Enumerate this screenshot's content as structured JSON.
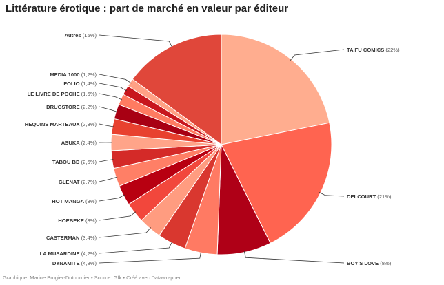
{
  "title": "Littérature érotique : part de marché en valeur par éditeur",
  "footer": "Graphique: Marine Brugier-Dutournier • Source: Gfk • Créé avec Datawrapper",
  "chart_data": {
    "type": "pie",
    "title": "Littérature érotique : part de marché en valeur par éditeur",
    "slices": [
      {
        "name": "TAIFU COMICS",
        "value": 22,
        "pct_label": "(22%)",
        "color": "#ffad8f"
      },
      {
        "name": "DELCOURT",
        "value": 21,
        "pct_label": "(21%)",
        "color": "#ff6450"
      },
      {
        "name": "BOY'S LOVE",
        "value": 8,
        "pct_label": "(8%)",
        "color": "#af0017"
      },
      {
        "name": "DYNAMITE",
        "value": 4.8,
        "pct_label": "(4,8%)",
        "color": "#ff7a63"
      },
      {
        "name": "LA MUSARDINE",
        "value": 4.2,
        "pct_label": "(4,2%)",
        "color": "#d9372f"
      },
      {
        "name": "CASTERMAN",
        "value": 3.4,
        "pct_label": "(3,4%)",
        "color": "#ff9c80"
      },
      {
        "name": "HOEBEKE",
        "value": 3,
        "pct_label": "(3%)",
        "color": "#f2473c"
      },
      {
        "name": "HOT MANGA",
        "value": 3,
        "pct_label": "(3%)",
        "color": "#b80011"
      },
      {
        "name": "GLENAT",
        "value": 2.7,
        "pct_label": "(2,7%)",
        "color": "#ff7f66"
      },
      {
        "name": "TABOU BD",
        "value": 2.6,
        "pct_label": "(2,6%)",
        "color": "#d42a28"
      },
      {
        "name": "ASUKA",
        "value": 2.4,
        "pct_label": "(2,4%)",
        "color": "#ffa489"
      },
      {
        "name": "REQUINS MARTEAUX",
        "value": 2.3,
        "pct_label": "(2,3%)",
        "color": "#e8412f"
      },
      {
        "name": "DRUGSTORE",
        "value": 2.2,
        "pct_label": "(2,2%)",
        "color": "#a80013"
      },
      {
        "name": "LE LIVRE DE POCHE",
        "value": 1.6,
        "pct_label": "(1,6%)",
        "color": "#ff7b61"
      },
      {
        "name": "FOLIO",
        "value": 1.4,
        "pct_label": "(1,4%)",
        "color": "#c8161d"
      },
      {
        "name": "MEDIA 1000",
        "value": 1.2,
        "pct_label": "(1,2%)",
        "color": "#ffa185"
      },
      {
        "name": "Autres",
        "value": 15,
        "pct_label": "(15%)",
        "color": "#e0473a"
      }
    ]
  }
}
